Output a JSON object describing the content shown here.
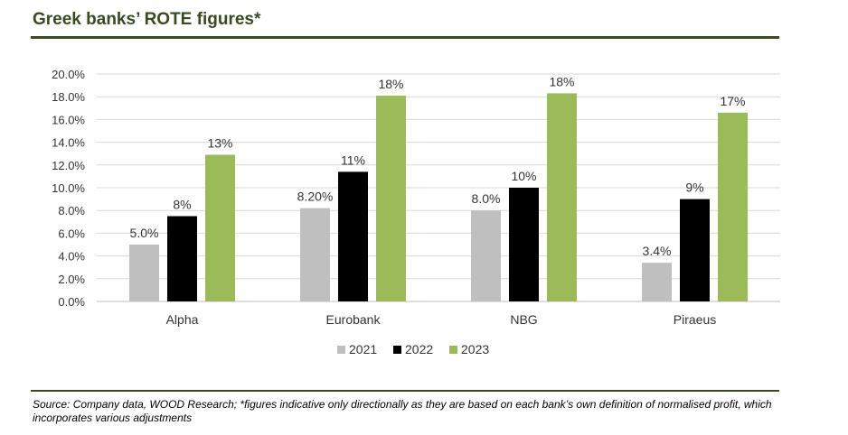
{
  "header": {
    "title": "Greek banks’ ROTE figures*"
  },
  "footer": {
    "source": "Source: Company data, WOOD Research; *figures indicative only directionally as they are based on each bank’s own definition of normalised profit, which incorporates various adjustments"
  },
  "colors": {
    "series_2021": "#bfbfbf",
    "series_2022": "#000000",
    "series_2023": "#9bbb59",
    "accent": "#3b4a1e"
  },
  "chart_data": {
    "type": "bar",
    "categories": [
      "Alpha",
      "Eurobank",
      "NBG",
      "Piraeus"
    ],
    "series": [
      {
        "name": "2021",
        "values": [
          5.0,
          8.2,
          8.0,
          3.4
        ],
        "labels": [
          "5.0%",
          "8.20%",
          "8.0%",
          "3.4%"
        ],
        "color": "#bfbfbf"
      },
      {
        "name": "2022",
        "values": [
          7.5,
          11.4,
          10.0,
          9.0
        ],
        "labels": [
          "8%",
          "11%",
          "10%",
          "9%"
        ],
        "color": "#000000"
      },
      {
        "name": "2023",
        "values": [
          12.9,
          18.1,
          18.3,
          16.6
        ],
        "labels": [
          "13%",
          "18%",
          "18%",
          "17%"
        ],
        "color": "#9bbb59"
      }
    ],
    "yticks": [
      "0.0%",
      "2.0%",
      "4.0%",
      "6.0%",
      "8.0%",
      "10.0%",
      "12.0%",
      "14.0%",
      "16.0%",
      "18.0%",
      "20.0%"
    ],
    "ylim": [
      0,
      20
    ],
    "grid": true,
    "legend": "bottom"
  }
}
